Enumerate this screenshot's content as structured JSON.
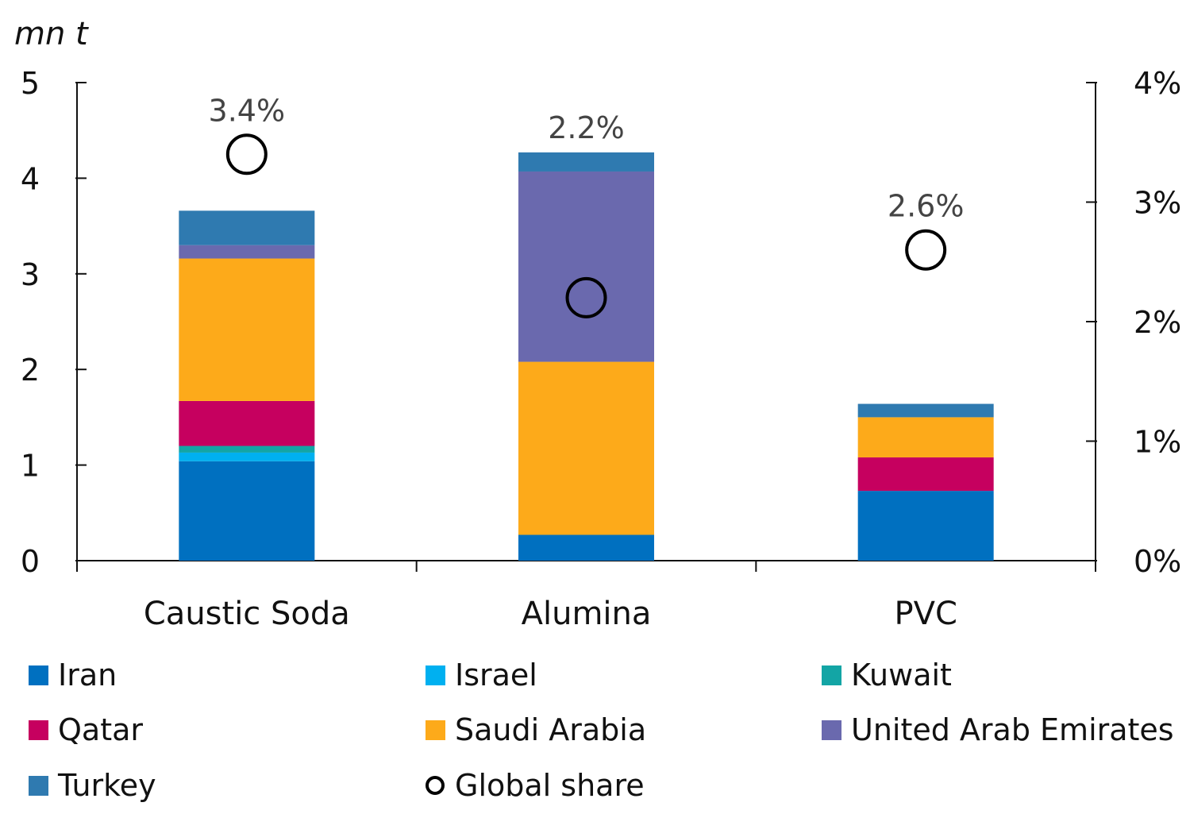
{
  "chart_data": {
    "type": "bar",
    "stacked": true,
    "ylabel": "mn t",
    "ylim": [
      0,
      5
    ],
    "yticks": [
      "0",
      "1",
      "2",
      "3",
      "4",
      "5"
    ],
    "y2lim": [
      0,
      4
    ],
    "y2ticks": [
      "0%",
      "1%",
      "2%",
      "3%",
      "4%"
    ],
    "categories": [
      "Caustic Soda",
      "Alumina",
      "PVC"
    ],
    "series": [
      {
        "name": "Iran",
        "color": "#0070c0",
        "values": [
          1.04,
          0.27,
          0.73
        ]
      },
      {
        "name": "Israel",
        "color": "#00b0f0",
        "values": [
          0.09,
          0,
          0
        ]
      },
      {
        "name": "Kuwait",
        "color": "#13a5a5",
        "values": [
          0.07,
          0,
          0
        ]
      },
      {
        "name": "Qatar",
        "color": "#c6005f",
        "values": [
          0.47,
          0,
          0.35
        ]
      },
      {
        "name": "Saudi Arabia",
        "color": "#fdaa1a",
        "values": [
          1.49,
          1.81,
          0.42
        ]
      },
      {
        "name": "United Arab Emirates",
        "color": "#6a69ae",
        "values": [
          0.14,
          1.99,
          0
        ]
      },
      {
        "name": "Turkey",
        "color": "#2f7ab0",
        "values": [
          0.36,
          0.2,
          0.14
        ]
      }
    ],
    "global_share": {
      "name": "Global share",
      "axis": "right",
      "values": [
        3.4,
        2.2,
        2.6
      ],
      "labels": [
        "3.4%",
        "2.2%",
        "2.6%"
      ]
    },
    "legend_position": "bottom",
    "grid": false
  }
}
